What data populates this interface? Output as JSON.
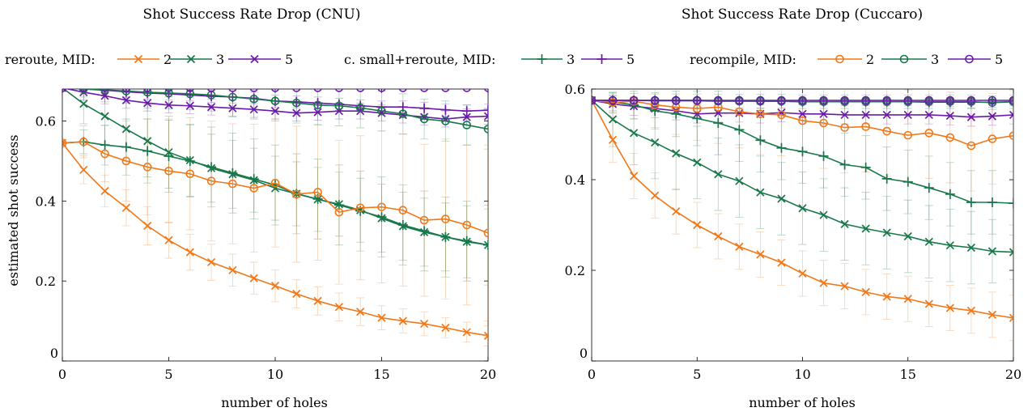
{
  "legend": {
    "groups": [
      {
        "label": "reroute, MID:",
        "marker": "x",
        "entries": [
          {
            "text": "2",
            "color": "#f07818"
          },
          {
            "text": "3",
            "color": "#18784a"
          },
          {
            "text": "5",
            "color": "#6a1aa8"
          }
        ]
      },
      {
        "label": "c. small+reroute, MID:",
        "marker": "plus",
        "entries": [
          {
            "text": "3",
            "color": "#18784a"
          },
          {
            "text": "5",
            "color": "#6a1aa8"
          }
        ]
      },
      {
        "label": "recompile, MID:",
        "marker": "circle",
        "entries": [
          {
            "text": "2",
            "color": "#f07818"
          },
          {
            "text": "3",
            "color": "#18784a"
          },
          {
            "text": "5",
            "color": "#6a1aa8"
          }
        ]
      }
    ],
    "placement": "top, spanning both panels"
  },
  "colors": {
    "mid2": "#f07818",
    "mid3": "#18784a",
    "mid5": "#6a1aa8"
  },
  "chart_data": [
    {
      "type": "line",
      "title": "Shot Success Rate Drop (CNU)",
      "xlabel": "number of holes",
      "ylabel": "estimated shot success",
      "xlim": [
        0,
        20
      ],
      "ylim": [
        0,
        0.68
      ],
      "xticks": [
        0,
        5,
        10,
        15,
        20
      ],
      "yticks": [
        0,
        0.2,
        0.4,
        0.6
      ],
      "ytick_labels": [
        "0",
        "0.2",
        "0.4",
        "0.6"
      ],
      "grid": false,
      "x": [
        0,
        1,
        2,
        3,
        4,
        5,
        6,
        7,
        8,
        9,
        10,
        11,
        12,
        13,
        14,
        15,
        16,
        17,
        18,
        19,
        20
      ],
      "series": [
        {
          "name": "reroute, MID: 2",
          "marker": "x",
          "color": "#f07818",
          "values": [
            0.545,
            0.478,
            0.425,
            0.383,
            0.338,
            0.302,
            0.272,
            0.247,
            0.227,
            0.207,
            0.188,
            0.168,
            0.15,
            0.135,
            0.123,
            0.108,
            0.1,
            0.093,
            0.083,
            0.072,
            0.063
          ],
          "error": [
            0,
            0.035,
            0.04,
            0.045,
            0.048,
            0.045,
            0.045,
            0.045,
            0.04,
            0.04,
            0.04,
            0.035,
            0.035,
            0.035,
            0.035,
            0.03,
            0.03,
            0.03,
            0.025,
            0.025,
            0.025
          ]
        },
        {
          "name": "reroute, MID: 3",
          "marker": "x",
          "color": "#18784a",
          "values": [
            0.683,
            0.643,
            0.612,
            0.58,
            0.55,
            0.522,
            0.502,
            0.482,
            0.467,
            0.452,
            0.432,
            0.418,
            0.404,
            0.392,
            0.377,
            0.357,
            0.337,
            0.322,
            0.31,
            0.298,
            0.29
          ],
          "error": [
            0,
            0.05,
            0.07,
            0.08,
            0.09,
            0.09,
            0.09,
            0.085,
            0.085,
            0.08,
            0.08,
            0.08,
            0.08,
            0.08,
            0.08,
            0.085,
            0.085,
            0.085,
            0.085,
            0.09,
            0.09
          ]
        },
        {
          "name": "reroute, MID: 5",
          "marker": "x",
          "color": "#6a1aa8",
          "values": [
            0.683,
            0.672,
            0.663,
            0.652,
            0.645,
            0.64,
            0.638,
            0.635,
            0.632,
            0.629,
            0.625,
            0.62,
            0.622,
            0.625,
            0.625,
            0.62,
            0.615,
            0.61,
            0.605,
            0.61,
            0.612
          ],
          "error": [
            0,
            0.02,
            0.02,
            0.02,
            0.02,
            0.02,
            0.02,
            0.02,
            0.02,
            0.02,
            0.02,
            0.02,
            0.02,
            0.02,
            0.02,
            0.02,
            0.02,
            0.02,
            0.02,
            0.02,
            0.02
          ]
        },
        {
          "name": "c. small+reroute, MID: 3",
          "marker": "plus",
          "color": "#18784a",
          "values": [
            0.545,
            0.548,
            0.54,
            0.535,
            0.525,
            0.512,
            0.5,
            0.485,
            0.47,
            0.455,
            0.44,
            0.418,
            0.405,
            0.39,
            0.375,
            0.36,
            0.34,
            0.325,
            0.31,
            0.3,
            0.29
          ],
          "error": [
            0,
            0.03,
            0.05,
            0.07,
            0.08,
            0.09,
            0.09,
            0.1,
            0.1,
            0.1,
            0.1,
            0.1,
            0.1,
            0.1,
            0.1,
            0.1,
            0.1,
            0.1,
            0.1,
            0.1,
            0.1
          ]
        },
        {
          "name": "c. small+reroute, MID: 5",
          "marker": "plus",
          "color": "#6a1aa8",
          "values": [
            0.683,
            0.68,
            0.677,
            0.673,
            0.67,
            0.668,
            0.665,
            0.662,
            0.66,
            0.657,
            0.65,
            0.648,
            0.645,
            0.642,
            0.638,
            0.635,
            0.635,
            0.632,
            0.628,
            0.625,
            0.627
          ],
          "error": [
            0,
            0.01,
            0.015,
            0.015,
            0.015,
            0.015,
            0.015,
            0.015,
            0.015,
            0.015,
            0.015,
            0.015,
            0.015,
            0.015,
            0.015,
            0.015,
            0.015,
            0.015,
            0.015,
            0.015,
            0.015
          ]
        },
        {
          "name": "recompile, MID: 2",
          "marker": "circle",
          "color": "#f07818",
          "values": [
            0.545,
            0.548,
            0.518,
            0.5,
            0.485,
            0.475,
            0.468,
            0.45,
            0.443,
            0.432,
            0.445,
            0.417,
            0.422,
            0.372,
            0.383,
            0.385,
            0.377,
            0.352,
            0.355,
            0.34,
            0.32
          ],
          "error": [
            0,
            0.04,
            0.07,
            0.1,
            0.12,
            0.13,
            0.14,
            0.15,
            0.15,
            0.16,
            0.16,
            0.17,
            0.17,
            0.18,
            0.18,
            0.19,
            0.19,
            0.19,
            0.2,
            0.2,
            0.22
          ]
        },
        {
          "name": "recompile, MID: 3",
          "marker": "circle",
          "color": "#18784a",
          "values": [
            0.683,
            0.68,
            0.678,
            0.675,
            0.672,
            0.67,
            0.668,
            0.665,
            0.66,
            0.655,
            0.65,
            0.645,
            0.64,
            0.638,
            0.633,
            0.625,
            0.618,
            0.605,
            0.6,
            0.59,
            0.58
          ],
          "error": [
            0,
            0.02,
            0.03,
            0.03,
            0.04,
            0.04,
            0.04,
            0.04,
            0.05,
            0.05,
            0.05,
            0.05,
            0.05,
            0.05,
            0.05,
            0.05,
            0.05,
            0.05,
            0.05,
            0.05,
            0.05
          ]
        },
        {
          "name": "recompile, MID: 5",
          "marker": "circle",
          "color": "#6a1aa8",
          "values": [
            0.683,
            0.683,
            0.683,
            0.683,
            0.683,
            0.683,
            0.683,
            0.683,
            0.683,
            0.683,
            0.683,
            0.683,
            0.683,
            0.683,
            0.683,
            0.683,
            0.683,
            0.683,
            0.683,
            0.683,
            0.683
          ],
          "error": [
            0,
            0.003,
            0.003,
            0.003,
            0.003,
            0.003,
            0.003,
            0.003,
            0.003,
            0.003,
            0.003,
            0.003,
            0.003,
            0.003,
            0.003,
            0.003,
            0.003,
            0.003,
            0.003,
            0.003,
            0.003
          ]
        }
      ]
    },
    {
      "type": "line",
      "title": "Shot Success Rate Drop (Cuccaro)",
      "xlabel": "number of holes",
      "ylabel": "",
      "xlim": [
        0,
        20
      ],
      "ylim": [
        0,
        0.6
      ],
      "xticks": [
        0,
        5,
        10,
        15,
        20
      ],
      "yticks": [
        0,
        0.2,
        0.4,
        0.6
      ],
      "ytick_labels": [
        "0",
        "0.2",
        "0.4",
        "0.6"
      ],
      "grid": false,
      "x": [
        0,
        1,
        2,
        3,
        4,
        5,
        6,
        7,
        8,
        9,
        10,
        11,
        12,
        13,
        14,
        15,
        16,
        17,
        18,
        19,
        20
      ],
      "series": [
        {
          "name": "reroute, MID: 2",
          "marker": "x",
          "color": "#f07818",
          "values": [
            0.575,
            0.488,
            0.408,
            0.365,
            0.33,
            0.3,
            0.275,
            0.252,
            0.235,
            0.217,
            0.193,
            0.172,
            0.165,
            0.152,
            0.142,
            0.137,
            0.126,
            0.117,
            0.111,
            0.102,
            0.095
          ],
          "error": [
            0,
            0.05,
            0.05,
            0.05,
            0.05,
            0.05,
            0.05,
            0.05,
            0.05,
            0.05,
            0.05,
            0.05,
            0.05,
            0.05,
            0.05,
            0.05,
            0.05,
            0.05,
            0.05,
            0.05,
            0.05
          ]
        },
        {
          "name": "reroute, MID: 3",
          "marker": "x",
          "color": "#18784a",
          "values": [
            0.575,
            0.533,
            0.503,
            0.482,
            0.458,
            0.438,
            0.412,
            0.397,
            0.372,
            0.358,
            0.337,
            0.322,
            0.302,
            0.292,
            0.283,
            0.275,
            0.263,
            0.255,
            0.25,
            0.242,
            0.24
          ],
          "error": [
            0,
            0.06,
            0.07,
            0.08,
            0.08,
            0.08,
            0.08,
            0.08,
            0.08,
            0.08,
            0.08,
            0.08,
            0.08,
            0.08,
            0.08,
            0.08,
            0.08,
            0.08,
            0.08,
            0.07,
            0.06
          ]
        },
        {
          "name": "reroute, MID: 5",
          "marker": "x",
          "color": "#6a1aa8",
          "values": [
            0.575,
            0.567,
            0.562,
            0.557,
            0.552,
            0.545,
            0.547,
            0.547,
            0.545,
            0.548,
            0.545,
            0.545,
            0.543,
            0.543,
            0.543,
            0.543,
            0.543,
            0.541,
            0.538,
            0.54,
            0.543
          ],
          "error": [
            0,
            0.02,
            0.02,
            0.02,
            0.02,
            0.02,
            0.02,
            0.02,
            0.02,
            0.02,
            0.02,
            0.02,
            0.02,
            0.02,
            0.02,
            0.02,
            0.02,
            0.02,
            0.02,
            0.02,
            0.02
          ]
        },
        {
          "name": "c. small+reroute, MID: 3",
          "marker": "plus",
          "color": "#18784a",
          "values": [
            0.575,
            0.572,
            0.565,
            0.552,
            0.545,
            0.535,
            0.525,
            0.51,
            0.487,
            0.47,
            0.462,
            0.452,
            0.433,
            0.427,
            0.402,
            0.395,
            0.382,
            0.368,
            0.35,
            0.35,
            0.348
          ],
          "error": [
            0,
            0.02,
            0.03,
            0.04,
            0.05,
            0.06,
            0.07,
            0.07,
            0.07,
            0.07,
            0.07,
            0.07,
            0.07,
            0.07,
            0.07,
            0.07,
            0.07,
            0.07,
            0.07,
            0.07,
            0.07
          ]
        },
        {
          "name": "c. small+reroute, MID: 5",
          "marker": "plus",
          "color": "#6a1aa8",
          "values": [
            0.575,
            0.575,
            0.575,
            0.575,
            0.575,
            0.575,
            0.574,
            0.574,
            0.573,
            0.573,
            0.572,
            0.572,
            0.572,
            0.572,
            0.572,
            0.572,
            0.571,
            0.571,
            0.571,
            0.571,
            0.572
          ],
          "error": [
            0,
            0.005,
            0.005,
            0.005,
            0.005,
            0.005,
            0.005,
            0.005,
            0.005,
            0.005,
            0.005,
            0.005,
            0.005,
            0.005,
            0.005,
            0.005,
            0.005,
            0.005,
            0.005,
            0.005,
            0.005
          ]
        },
        {
          "name": "recompile, MID: 2",
          "marker": "circle",
          "color": "#f07818",
          "values": [
            0.575,
            0.57,
            0.573,
            0.565,
            0.56,
            0.557,
            0.56,
            0.55,
            0.545,
            0.543,
            0.53,
            0.525,
            0.515,
            0.517,
            0.507,
            0.498,
            0.503,
            0.493,
            0.475,
            0.49,
            0.497
          ],
          "error": [
            0,
            0.02,
            0.04,
            0.05,
            0.06,
            0.07,
            0.08,
            0.08,
            0.09,
            0.09,
            0.09,
            0.1,
            0.1,
            0.1,
            0.1,
            0.1,
            0.1,
            0.1,
            0.1,
            0.1,
            0.1
          ]
        },
        {
          "name": "recompile, MID: 3",
          "marker": "circle",
          "color": "#18784a",
          "values": [
            0.575,
            0.575,
            0.575,
            0.574,
            0.574,
            0.574,
            0.573,
            0.573,
            0.573,
            0.573,
            0.572,
            0.572,
            0.572,
            0.572,
            0.572,
            0.572,
            0.572,
            0.572,
            0.572,
            0.57,
            0.572
          ],
          "error": [
            0,
            0.01,
            0.015,
            0.015,
            0.015,
            0.015,
            0.015,
            0.015,
            0.015,
            0.015,
            0.015,
            0.015,
            0.015,
            0.015,
            0.015,
            0.015,
            0.015,
            0.015,
            0.015,
            0.015,
            0.015
          ]
        },
        {
          "name": "recompile, MID: 5",
          "marker": "circle",
          "color": "#6a1aa8",
          "values": [
            0.575,
            0.575,
            0.575,
            0.575,
            0.575,
            0.575,
            0.575,
            0.575,
            0.575,
            0.575,
            0.575,
            0.575,
            0.575,
            0.575,
            0.575,
            0.575,
            0.575,
            0.575,
            0.575,
            0.575,
            0.575
          ],
          "error": [
            0,
            0.003,
            0.003,
            0.003,
            0.003,
            0.003,
            0.003,
            0.003,
            0.003,
            0.003,
            0.003,
            0.003,
            0.003,
            0.003,
            0.003,
            0.003,
            0.003,
            0.003,
            0.003,
            0.003,
            0.003
          ]
        }
      ]
    }
  ]
}
